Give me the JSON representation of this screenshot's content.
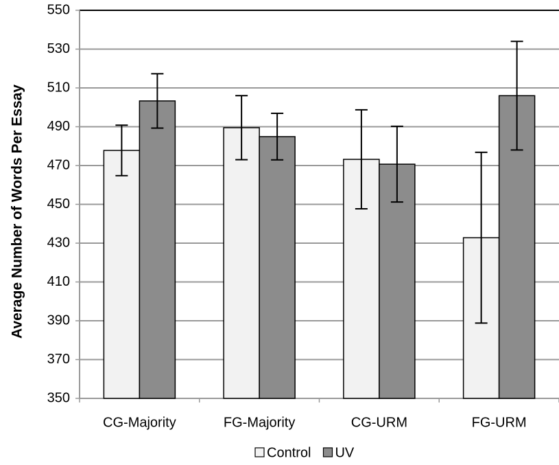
{
  "chart_data": {
    "type": "bar",
    "y_label": "Average Number of Words Per Essay",
    "categories": [
      "CG-Majority",
      "FG-Majority",
      "CG-URM",
      "FG-URM"
    ],
    "series": [
      {
        "name": "Control",
        "color": "#f2f2f2",
        "values": [
          477.8,
          489.5,
          473.2,
          432.8
        ],
        "errors": [
          13,
          16.5,
          25.5,
          44
        ]
      },
      {
        "name": "UV",
        "color": "#8c8c8c",
        "values": [
          503.3,
          484.9,
          470.7,
          506
        ],
        "errors": [
          14,
          12,
          19.5,
          28
        ]
      }
    ],
    "ylim": [
      350,
      550
    ],
    "yticks": [
      350,
      370,
      390,
      410,
      430,
      450,
      470,
      490,
      510,
      530,
      550
    ],
    "grid": true
  }
}
